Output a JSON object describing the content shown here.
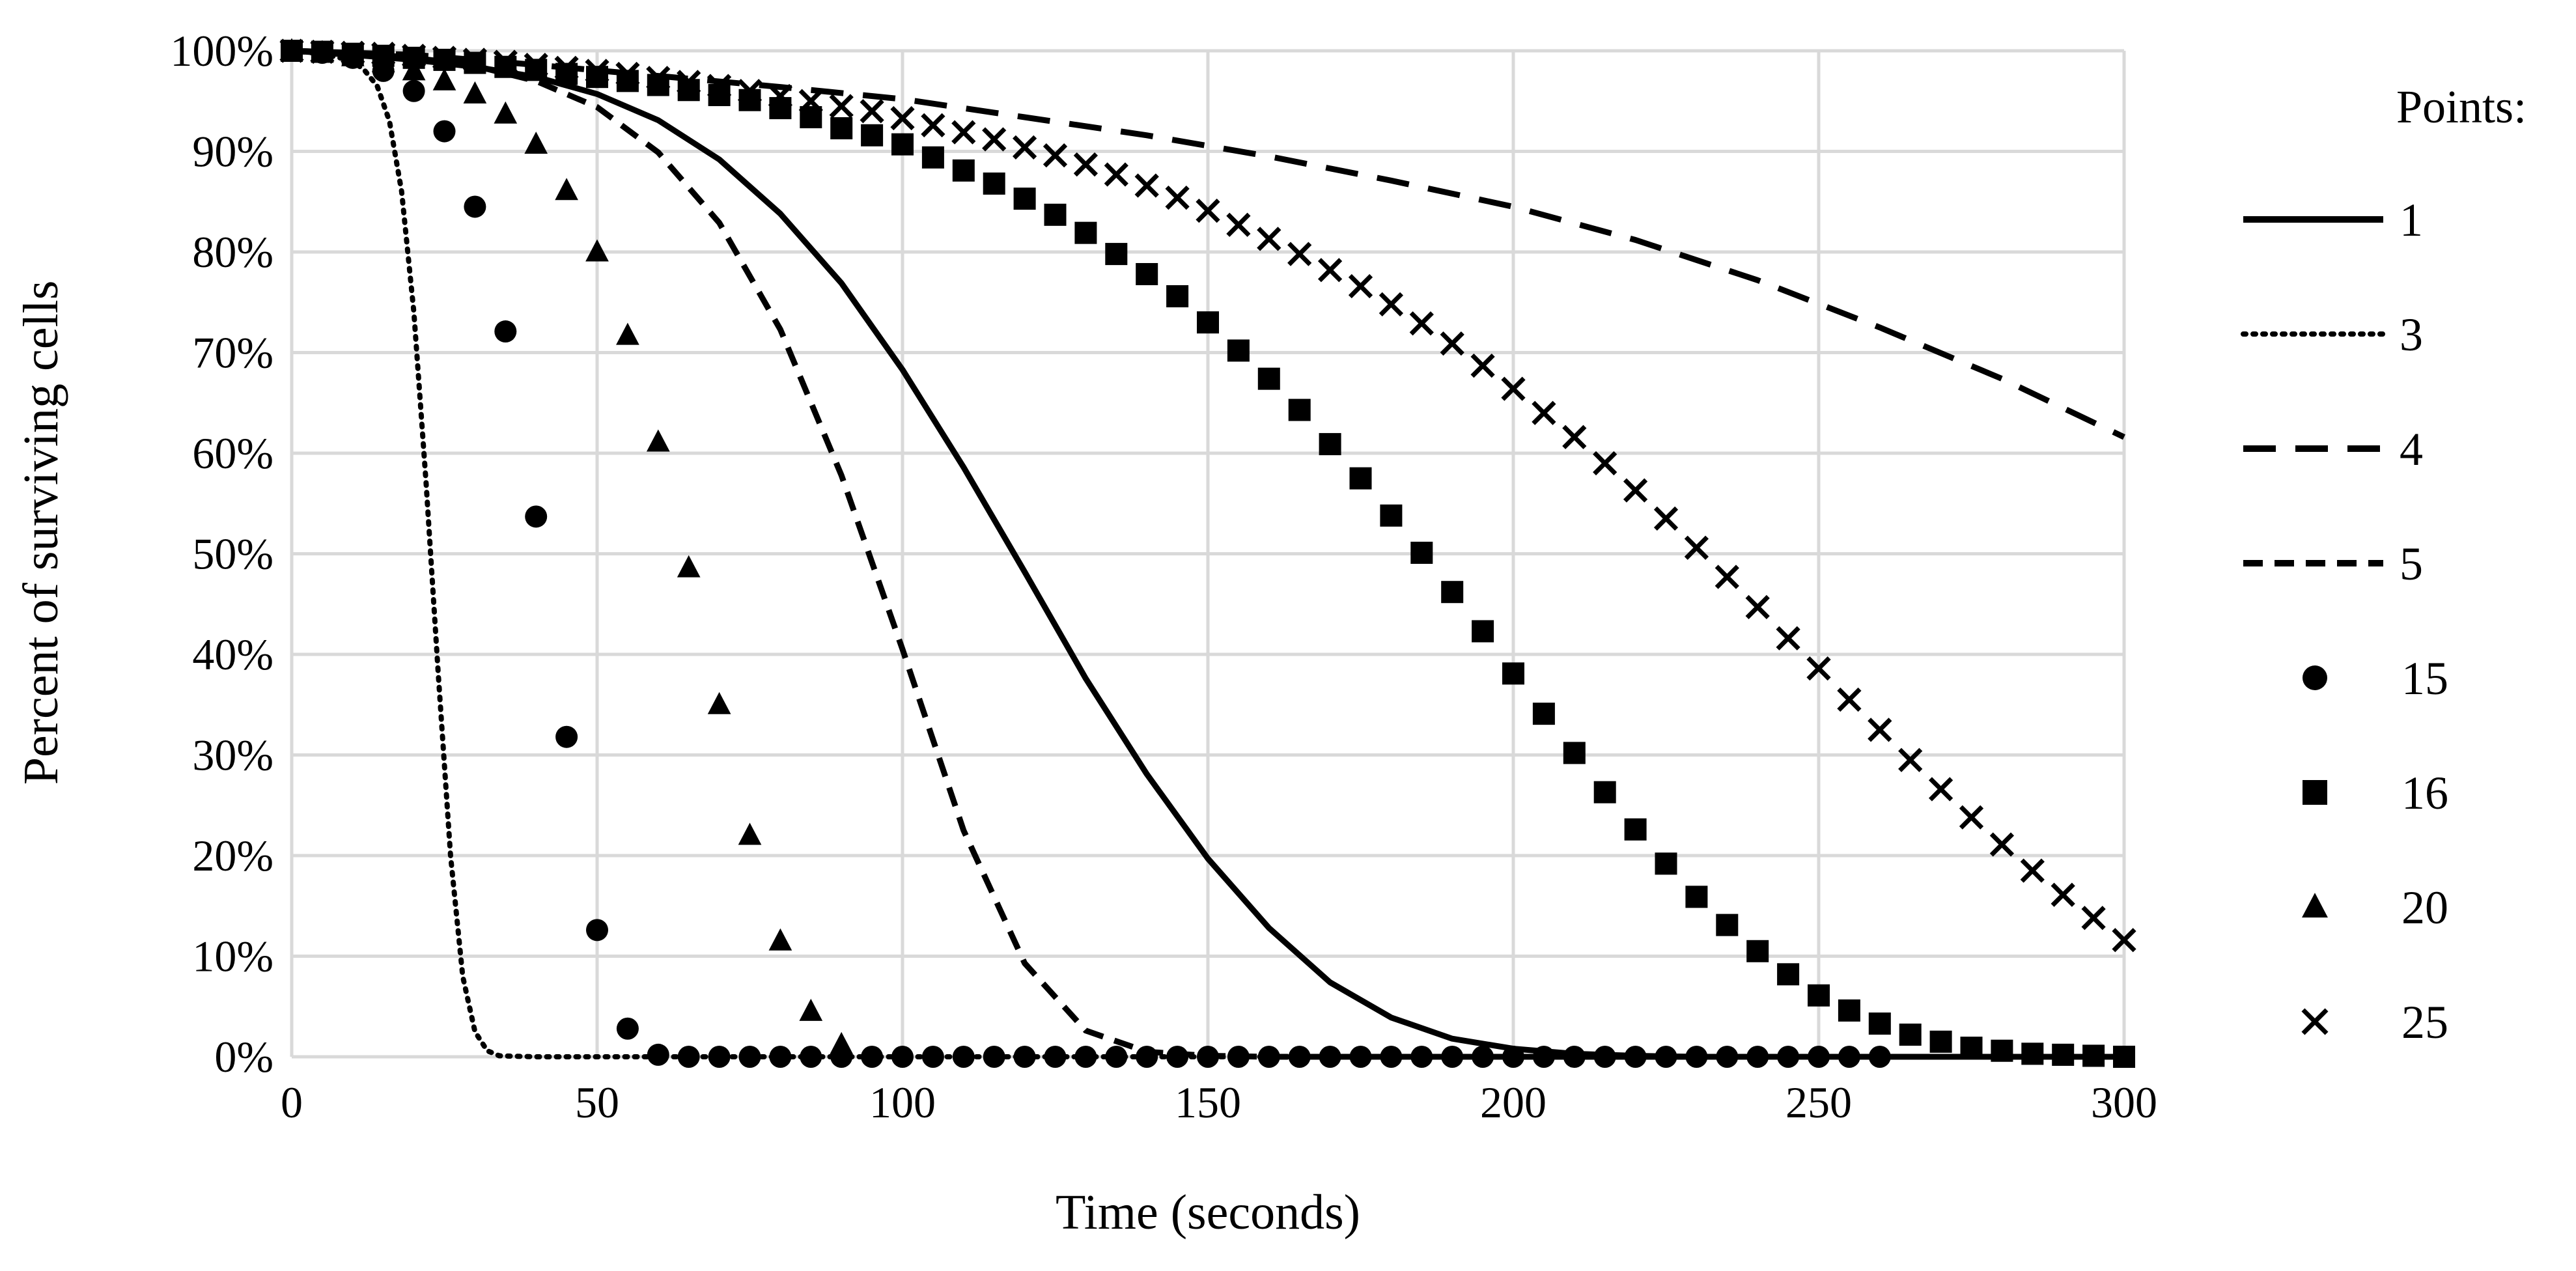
{
  "chart_data": {
    "type": "line",
    "title": "",
    "xlabel": "Time (seconds)",
    "ylabel": "Percent of surviving cells",
    "xlim": [
      0,
      300
    ],
    "ylim": [
      0,
      100
    ],
    "x_ticks": [
      0,
      50,
      100,
      150,
      200,
      250,
      300
    ],
    "x_tick_labels": [
      "0",
      "50",
      "100",
      "150",
      "200",
      "250",
      "300"
    ],
    "y_ticks": [
      0,
      10,
      20,
      30,
      40,
      50,
      60,
      70,
      80,
      90,
      100
    ],
    "y_tick_labels": [
      "0%",
      "10%",
      "20%",
      "30%",
      "40%",
      "50%",
      "60%",
      "70%",
      "80%",
      "90%",
      "100%"
    ],
    "grid": true,
    "legend_title": "Points:",
    "legend_position": "right",
    "series": [
      {
        "name": "1",
        "style": "solid",
        "x": [
          0,
          10,
          20,
          30,
          40,
          50,
          60,
          70,
          80,
          90,
          100,
          110,
          120,
          130,
          140,
          150,
          160,
          170,
          180,
          190,
          200,
          210,
          220,
          230,
          240,
          250,
          260,
          270,
          280,
          290,
          300
        ],
        "y": [
          100,
          99.6,
          99.1,
          98.4,
          97.4,
          95.7,
          93.1,
          89.2,
          83.8,
          76.9,
          68.3,
          58.6,
          48.2,
          37.6,
          28.1,
          19.7,
          12.8,
          7.4,
          3.9,
          1.8,
          0.8,
          0.3,
          0.1,
          0,
          0,
          0,
          0,
          0,
          0,
          0,
          0
        ]
      },
      {
        "name": "3",
        "style": "dotted",
        "x": [
          0,
          5,
          10,
          12,
          14,
          16,
          18,
          20,
          22,
          24,
          26,
          28,
          30,
          32,
          34,
          40,
          50,
          60,
          70,
          80,
          90,
          100,
          150,
          200,
          250,
          300
        ],
        "y": [
          100,
          99.7,
          99,
          98,
          96.5,
          93,
          86,
          74,
          57,
          38,
          20,
          8,
          2.5,
          0.6,
          0.1,
          0,
          0,
          0,
          0,
          0,
          0,
          0,
          0,
          0,
          0,
          0
        ]
      },
      {
        "name": "4",
        "style": "long-dash",
        "x": [
          0,
          20,
          40,
          60,
          80,
          100,
          120,
          140,
          160,
          180,
          200,
          220,
          240,
          260,
          280,
          300
        ],
        "y": [
          100,
          99.6,
          98.6,
          97.5,
          96.4,
          95.2,
          93.4,
          91.6,
          89.5,
          87.1,
          84.5,
          81.2,
          77.2,
          72.5,
          67.4,
          61.6
        ]
      },
      {
        "name": "5",
        "style": "short-dash",
        "x": [
          0,
          10,
          20,
          30,
          40,
          50,
          60,
          70,
          80,
          90,
          100,
          110,
          120,
          130,
          140,
          150,
          160,
          180,
          200,
          250,
          300
        ],
        "y": [
          100,
          99.8,
          99.3,
          98.5,
          97,
          94.4,
          89.9,
          82.9,
          72.3,
          57.8,
          40.5,
          22.5,
          9.3,
          2.6,
          0.5,
          0.1,
          0,
          0,
          0,
          0,
          0
        ]
      },
      {
        "name": "15",
        "marker": "circle",
        "x": [
          0,
          5,
          10,
          15,
          20,
          25,
          30,
          35,
          40,
          45,
          50,
          55,
          60,
          65,
          70,
          75,
          80,
          85,
          90,
          95,
          100,
          105,
          110,
          115,
          120,
          125,
          130,
          135,
          140,
          145,
          150,
          155,
          160,
          165,
          170,
          175,
          180,
          185,
          190,
          195,
          200,
          205,
          210,
          215,
          220,
          225,
          230,
          235,
          240,
          245,
          250,
          255,
          260
        ],
        "y": [
          100,
          99.8,
          99.3,
          98,
          96,
          92,
          84.5,
          72.1,
          53.7,
          31.8,
          12.6,
          2.8,
          0.2,
          0,
          0,
          0,
          0,
          0,
          0,
          0,
          0,
          0,
          0,
          0,
          0,
          0,
          0,
          0,
          0,
          0,
          0,
          0,
          0,
          0,
          0,
          0,
          0,
          0,
          0,
          0,
          0,
          0,
          0,
          0,
          0,
          0,
          0,
          0,
          0,
          0,
          0,
          0,
          0
        ]
      },
      {
        "name": "16",
        "marker": "square",
        "x": [
          0,
          5,
          10,
          15,
          20,
          25,
          30,
          35,
          40,
          45,
          50,
          55,
          60,
          65,
          70,
          75,
          80,
          85,
          90,
          95,
          100,
          105,
          110,
          115,
          120,
          125,
          130,
          135,
          140,
          145,
          150,
          155,
          160,
          165,
          170,
          175,
          180,
          185,
          190,
          195,
          200,
          205,
          210,
          215,
          220,
          225,
          230,
          235,
          240,
          245,
          250,
          255,
          260,
          265,
          270,
          275,
          280,
          285,
          290,
          295,
          300
        ],
        "y": [
          100,
          99.9,
          99.7,
          99.5,
          99.3,
          99.1,
          98.8,
          98.4,
          98.1,
          97.7,
          97.4,
          97,
          96.6,
          96.1,
          95.6,
          95.1,
          94.3,
          93.4,
          92.3,
          91.6,
          90.7,
          89.4,
          88.1,
          86.8,
          85.3,
          83.7,
          81.9,
          79.8,
          77.8,
          75.6,
          73,
          70.2,
          67.4,
          64.3,
          60.9,
          57.5,
          53.8,
          50.1,
          46.2,
          42.3,
          38.1,
          34.1,
          30.2,
          26.3,
          22.6,
          19.2,
          15.9,
          13.1,
          10.5,
          8.2,
          6.1,
          4.6,
          3.3,
          2.2,
          1.5,
          0.9,
          0.6,
          0.3,
          0.2,
          0.1,
          0
        ]
      },
      {
        "name": "20",
        "marker": "triangle",
        "x": [
          0,
          5,
          10,
          15,
          20,
          25,
          30,
          35,
          40,
          45,
          50,
          55,
          60,
          65,
          70,
          75,
          80,
          85,
          90
        ],
        "y": [
          100,
          99.8,
          99.4,
          98.8,
          98,
          97,
          95.7,
          93.7,
          90.7,
          86.1,
          80,
          71.7,
          61.1,
          48.6,
          35,
          22,
          11.5,
          4.5,
          1.2
        ]
      },
      {
        "name": "25",
        "marker": "x",
        "x": [
          0,
          5,
          10,
          15,
          20,
          25,
          30,
          35,
          40,
          45,
          50,
          55,
          60,
          65,
          70,
          75,
          80,
          85,
          90,
          95,
          100,
          105,
          110,
          115,
          120,
          125,
          130,
          135,
          140,
          145,
          150,
          155,
          160,
          165,
          170,
          175,
          180,
          185,
          190,
          195,
          200,
          205,
          210,
          215,
          220,
          225,
          230,
          235,
          240,
          245,
          250,
          255,
          260,
          265,
          270,
          275,
          280,
          285,
          290,
          295,
          300
        ],
        "y": [
          100,
          99.9,
          99.8,
          99.7,
          99.5,
          99.3,
          99.1,
          98.9,
          98.6,
          98.3,
          98,
          97.7,
          97.3,
          96.9,
          96.5,
          96,
          95.5,
          95,
          94.5,
          94,
          93.3,
          92.6,
          91.9,
          91.2,
          90.4,
          89.6,
          88.7,
          87.7,
          86.6,
          85.4,
          84.1,
          82.7,
          81.3,
          79.8,
          78.2,
          76.6,
          74.8,
          72.9,
          70.9,
          68.7,
          66.4,
          64,
          61.6,
          59,
          56.3,
          53.5,
          50.6,
          47.7,
          44.7,
          41.6,
          38.6,
          35.5,
          32.5,
          29.5,
          26.6,
          23.8,
          21.1,
          18.5,
          16.1,
          13.8,
          11.6
        ]
      }
    ]
  }
}
